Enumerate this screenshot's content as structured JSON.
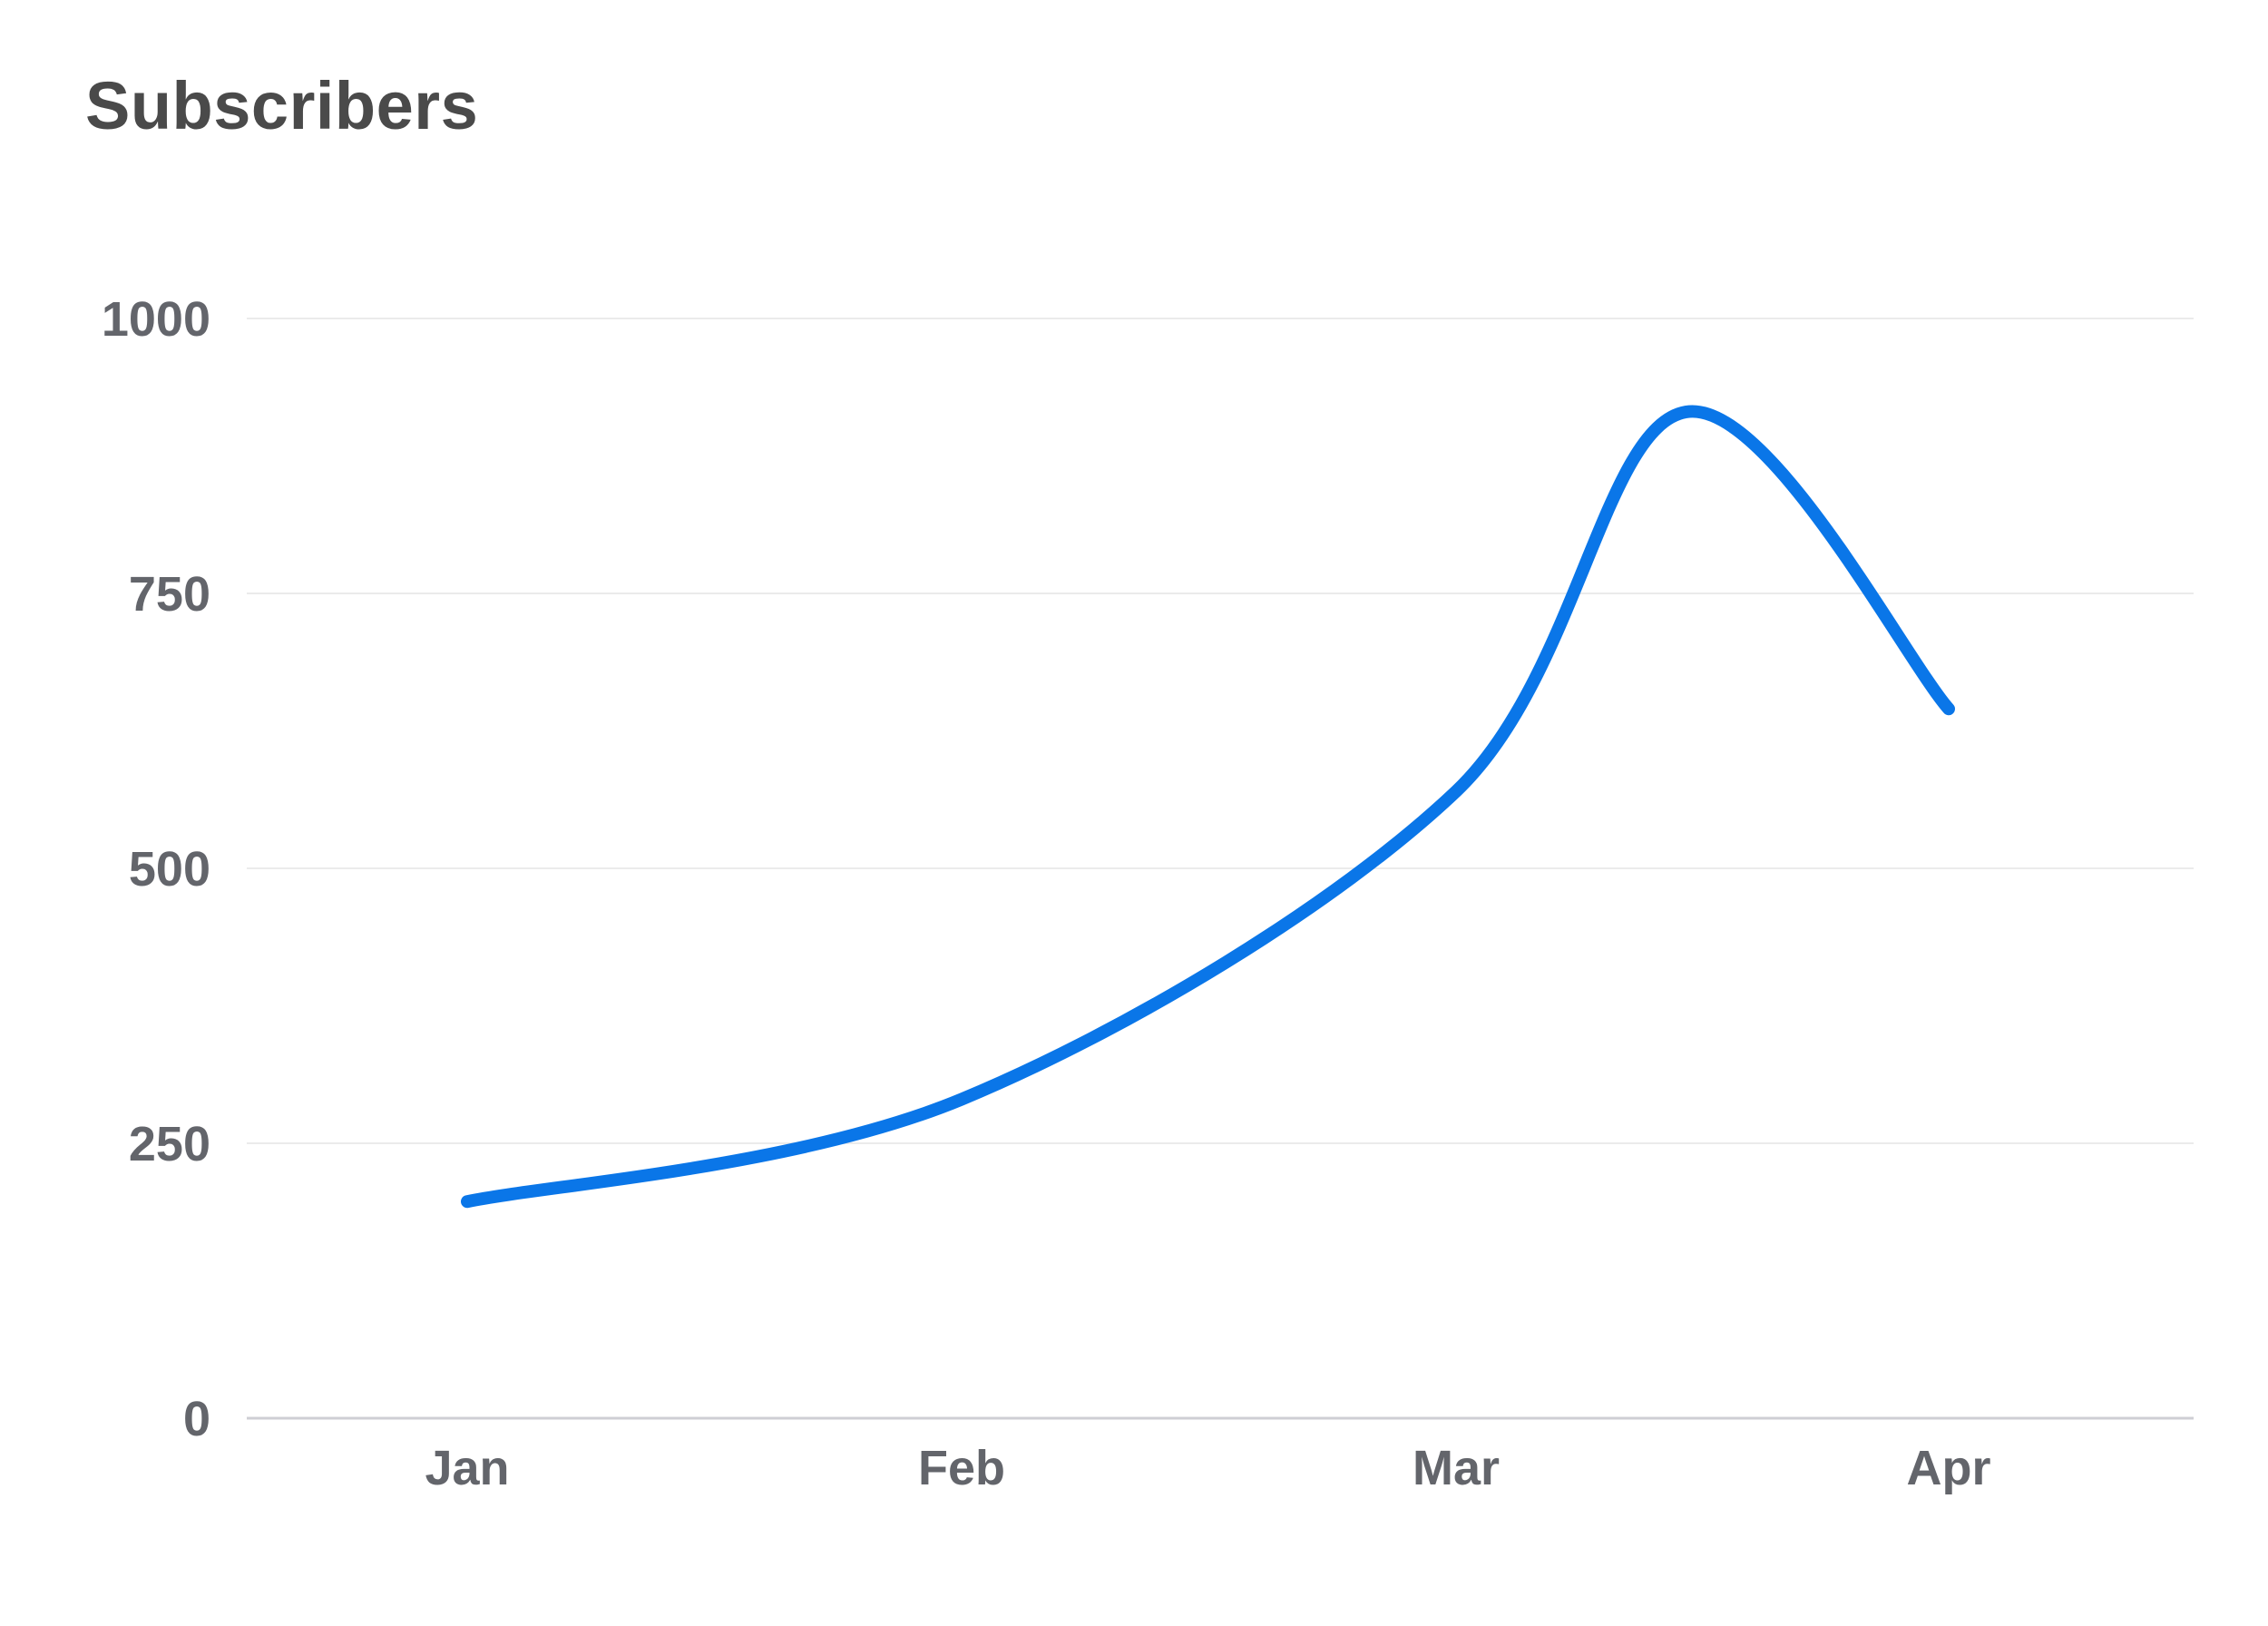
{
  "title": "Subscribers",
  "colors": {
    "line": "#0a76e8",
    "grid": "#ebebeb",
    "baseline": "#cfcfd4",
    "tick_text": "#63656b",
    "title_text": "#4a4a4a"
  },
  "chart_data": {
    "type": "line",
    "title": "Subscribers",
    "xlabel": "",
    "ylabel": "",
    "categories": [
      "Jan",
      "Feb",
      "Mar",
      "Apr"
    ],
    "x_ticks": [
      "Jan",
      "Feb",
      "Mar",
      "Apr"
    ],
    "y_ticks": [
      0,
      250,
      500,
      750,
      1000
    ],
    "ylim": [
      0,
      1000
    ],
    "grid": true,
    "smooth": true,
    "legend": "none",
    "series": [
      {
        "points": [
          {
            "x": "Jan",
            "y": 197
          },
          {
            "x": "Feb",
            "y": 290
          },
          {
            "x": "Mar",
            "y": 570
          },
          {
            "x": "Mar 15",
            "y": 915
          },
          {
            "x": "Apr",
            "y": 645
          }
        ]
      }
    ]
  }
}
